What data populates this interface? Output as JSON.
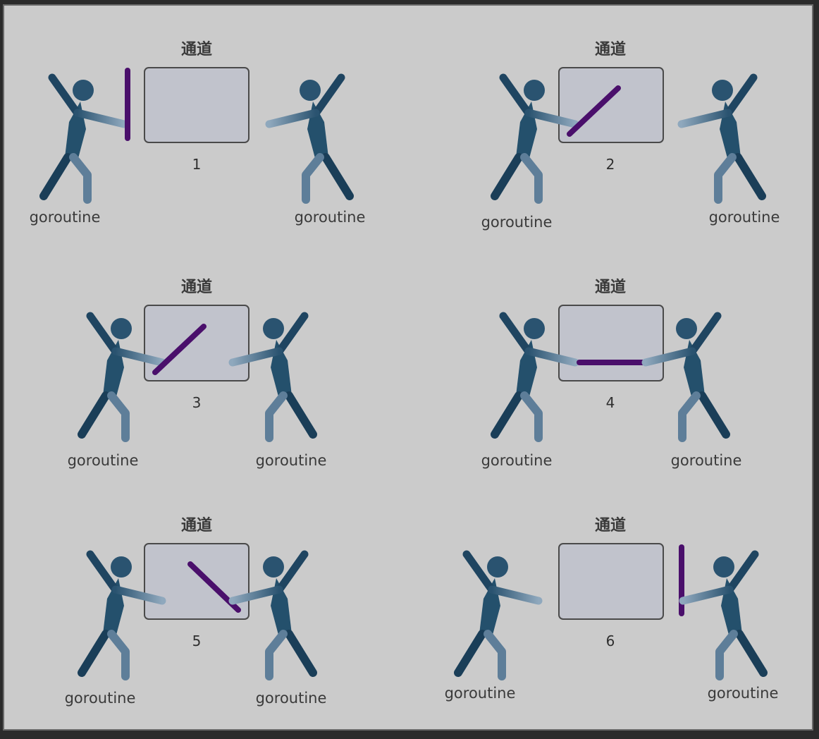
{
  "colors": {
    "frame": "#2b2b2b",
    "canvas": "#cbcbcb",
    "box_fill": "#c1c3cc",
    "box_stroke": "#4a4a4a",
    "figure_dark": "#1f4561",
    "figure_light": "#5e7e99",
    "stick": "#4a0f6b",
    "text": "#3a3a3a"
  },
  "icons": [
    "person-figure-icon",
    "channel-box-icon",
    "stick-baton-icon"
  ],
  "panels": [
    {
      "number": "1",
      "title": "通道",
      "left_label": "goroutine",
      "right_label": "goroutine"
    },
    {
      "number": "2",
      "title": "通道",
      "left_label": "goroutine",
      "right_label": "goroutine"
    },
    {
      "number": "3",
      "title": "通道",
      "left_label": "goroutine",
      "right_label": "goroutine"
    },
    {
      "number": "4",
      "title": "通道",
      "left_label": "goroutine",
      "right_label": "goroutine"
    },
    {
      "number": "5",
      "title": "通道",
      "left_label": "goroutine",
      "right_label": "goroutine"
    },
    {
      "number": "6",
      "title": "通道",
      "left_label": "goroutine",
      "right_label": "goroutine"
    }
  ]
}
